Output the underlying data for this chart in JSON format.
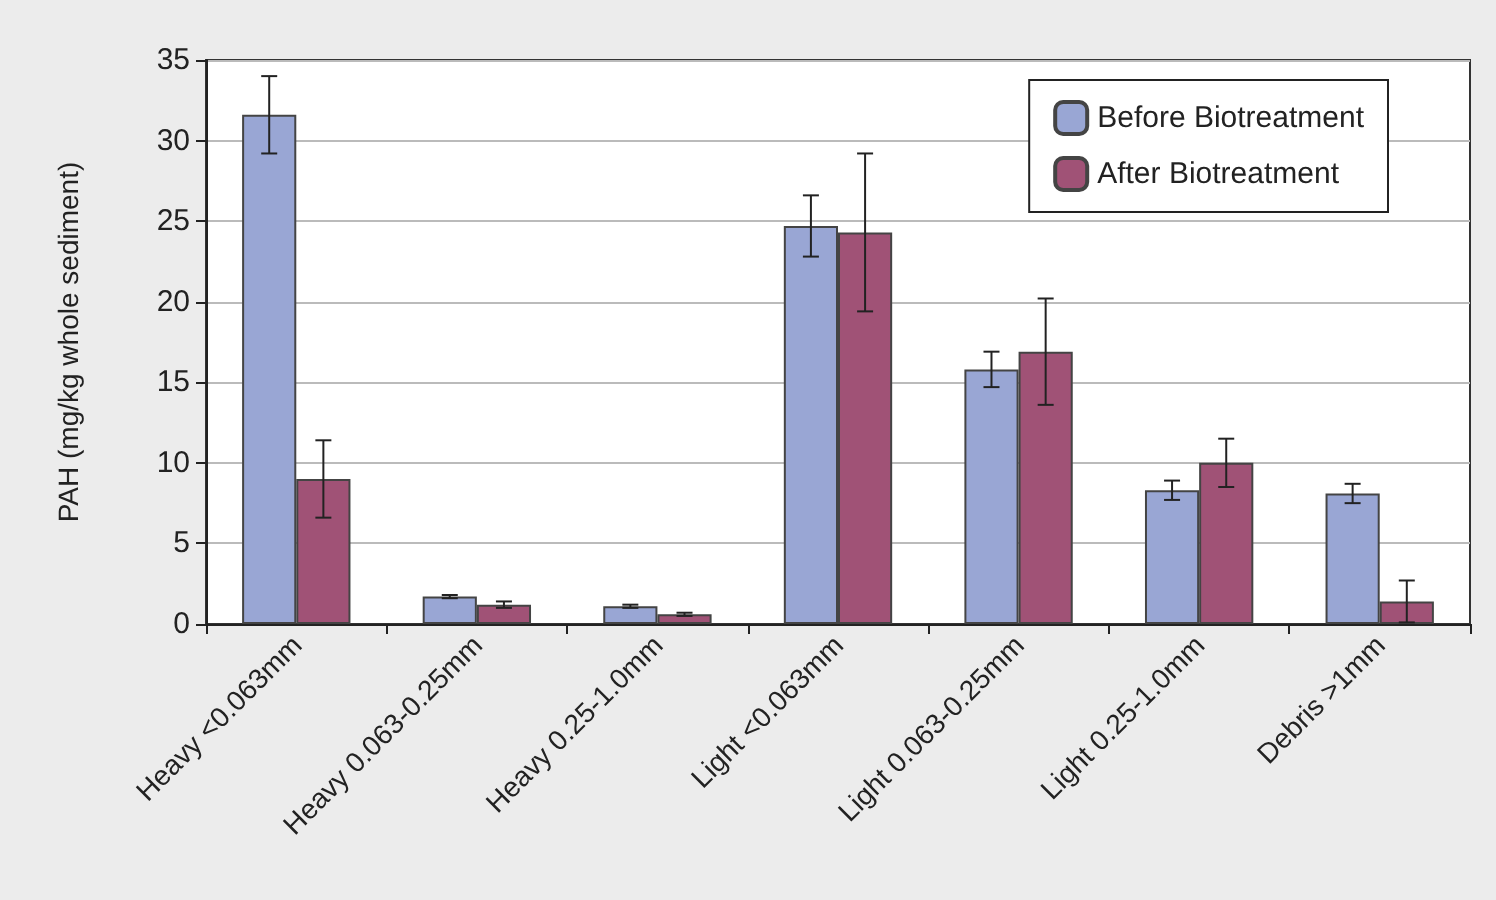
{
  "chart_data": {
    "type": "bar",
    "ylabel": "PAH (mg/kg whole sediment)",
    "categories": [
      "Heavy <0.063mm",
      "Heavy 0.063-0.25mm",
      "Heavy 0.25-1.0mm",
      "Light <0.063mm",
      "Light 0.063-0.25mm",
      "Light 0.25-1.0mm",
      "Debris >1mm"
    ],
    "series": [
      {
        "name": "Before Biotreatment",
        "color": "#99a6d4",
        "values": [
          31.6,
          1.7,
          1.1,
          24.7,
          15.8,
          8.3,
          8.1
        ],
        "errors": [
          2.4,
          0.1,
          0.1,
          1.9,
          1.1,
          0.6,
          0.6
        ]
      },
      {
        "name": "After Biotreatment",
        "color": "#a05276",
        "values": [
          9.0,
          1.2,
          0.6,
          24.3,
          16.9,
          10.0,
          1.4
        ],
        "errors": [
          2.4,
          0.2,
          0.1,
          4.9,
          3.3,
          1.5,
          1.3
        ]
      }
    ],
    "ylim": [
      0,
      35
    ],
    "yticks": [
      0,
      5,
      10,
      15,
      20,
      25,
      30,
      35
    ],
    "grid": "y",
    "legend": "top right"
  }
}
